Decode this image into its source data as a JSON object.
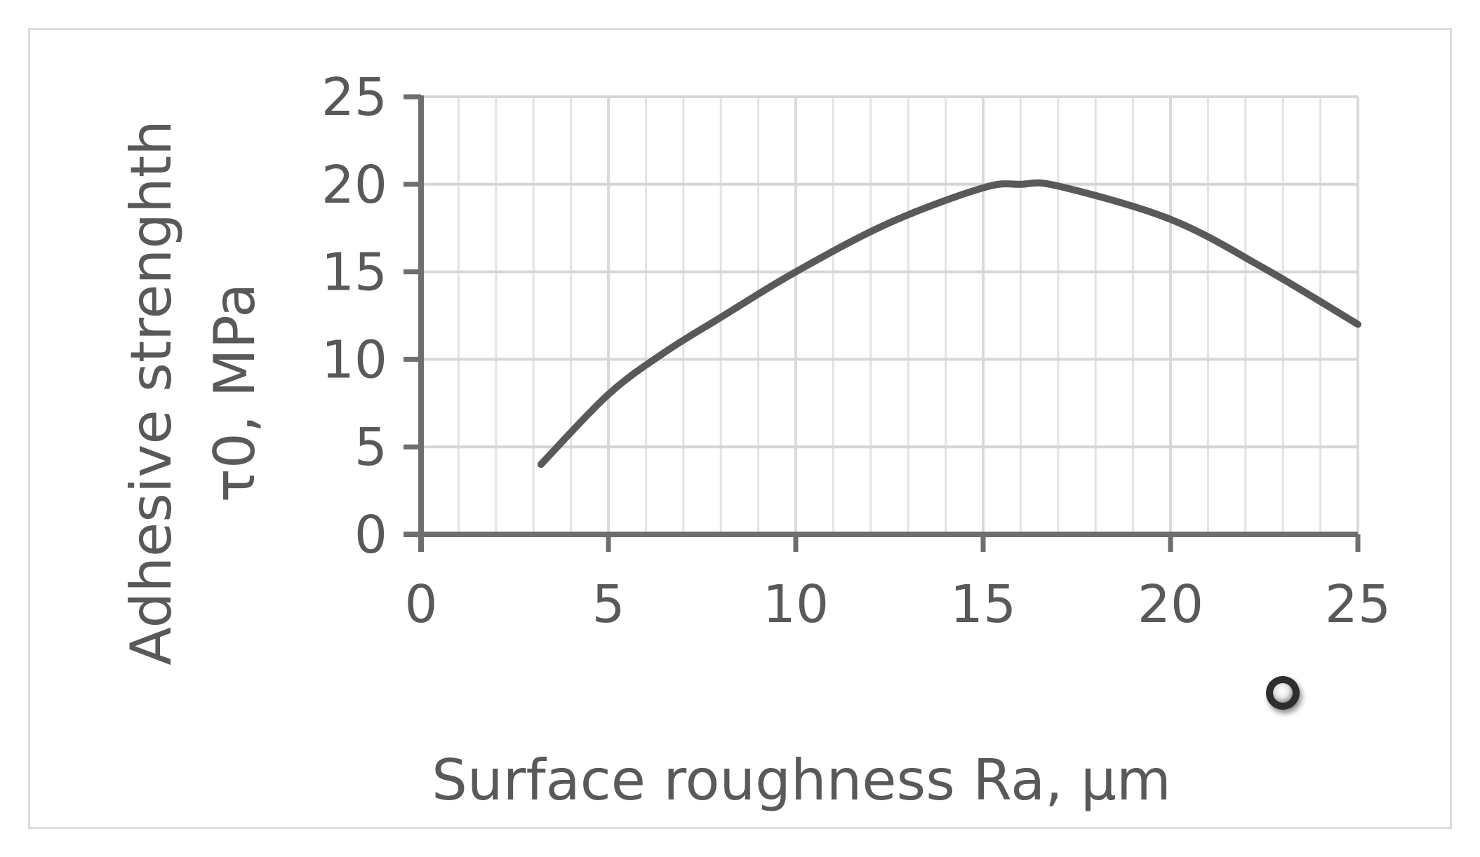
{
  "chart_data": {
    "type": "line",
    "title": "",
    "xlabel": "Surface roughness Ra, μm",
    "ylabel_line1": "Adhesive strenghth",
    "ylabel_line2": "τ0, MPa",
    "xlim": [
      0,
      25
    ],
    "ylim": [
      0,
      25
    ],
    "x_ticks": [
      "0",
      "5",
      "10",
      "15",
      "20",
      "25"
    ],
    "y_ticks": [
      "0",
      "5",
      "10",
      "15",
      "20",
      "25"
    ],
    "grid": true,
    "minor_gridlines_x": true,
    "series": [
      {
        "x": [
          3.2,
          5,
          6.5,
          8,
          10,
          12.5,
          15,
          16,
          17,
          20,
          22.5,
          25
        ],
        "y": [
          4,
          8,
          10.4,
          12.4,
          15,
          17.8,
          19.8,
          20,
          19.9,
          18,
          15.2,
          12
        ],
        "color": "#595959"
      }
    ],
    "marker_color": "#3a3a3a"
  }
}
